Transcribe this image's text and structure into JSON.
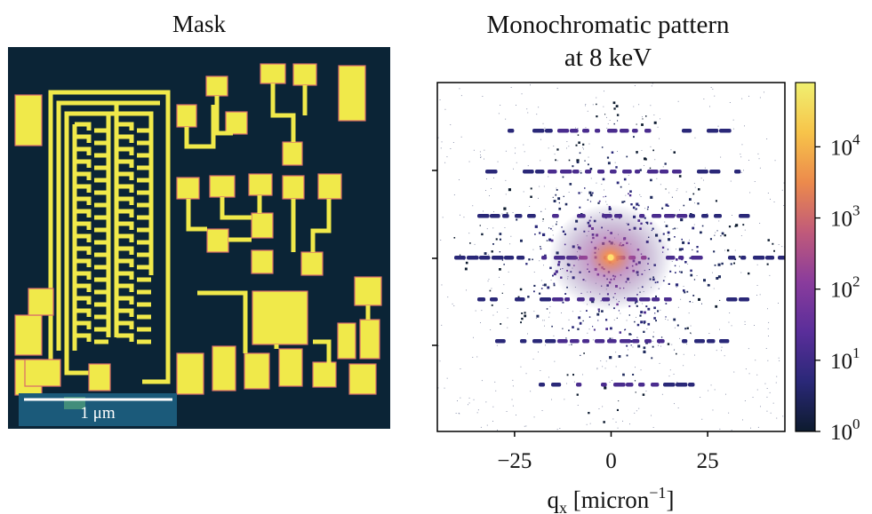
{
  "chart_data": [
    {
      "type": "heatmap",
      "title": "Mask",
      "scalebar": {
        "label": "1 μm"
      },
      "colors": {
        "background": "#0b2436",
        "feature": "#f0e94a",
        "edge": "#d86a6a",
        "scalebar_box": "#1b5a7a"
      }
    },
    {
      "type": "heatmap",
      "title_lines": [
        "Monochromatic pattern",
        "at 8 keV"
      ],
      "xlabel_prefix": "q",
      "xlabel_sub": "x",
      "xlabel_rest": " [micron",
      "xlabel_sup": "−1",
      "xlabel_end": "]",
      "xlim": [
        -45,
        45
      ],
      "xticks": [
        {
          "value": -25,
          "label": "−25"
        },
        {
          "value": 0,
          "label": "0"
        },
        {
          "value": 25,
          "label": "25"
        }
      ],
      "colorbar": {
        "scale": "log",
        "range": [
          1,
          80000
        ],
        "ticks": [
          {
            "value": 1,
            "base": "10",
            "exp": "0"
          },
          {
            "value": 10,
            "base": "10",
            "exp": "1"
          },
          {
            "value": 100,
            "base": "10",
            "exp": "2"
          },
          {
            "value": 1000,
            "base": "10",
            "exp": "3"
          },
          {
            "value": 10000,
            "base": "10",
            "exp": "4"
          }
        ],
        "colormap": [
          "#0d1b2e",
          "#2a2878",
          "#5a2e9a",
          "#8a3c9c",
          "#c05a7a",
          "#ec8a4c",
          "#f7c44a",
          "#f0f070"
        ]
      }
    }
  ]
}
